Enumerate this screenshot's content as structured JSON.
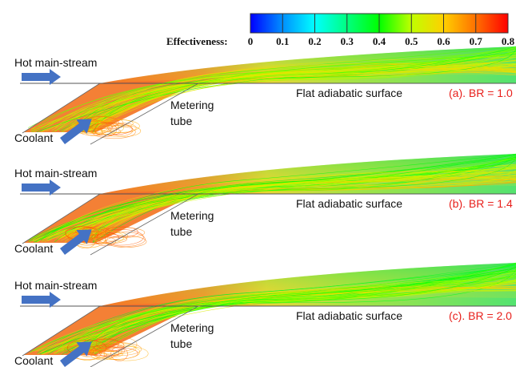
{
  "colorbar": {
    "title": "Effectiveness:",
    "ticks": [
      "0",
      "0.1",
      "0.2",
      "0.3",
      "0.4",
      "0.5",
      "0.6",
      "0.7",
      "0.8"
    ],
    "range": [
      0,
      0.8
    ],
    "colors": [
      "#0000ff",
      "#0090ff",
      "#00ffff",
      "#00ff80",
      "#00ff00",
      "#c0ff00",
      "#ffd000",
      "#ff7000",
      "#ff0000"
    ]
  },
  "labels": {
    "mainstream": "Hot main-stream",
    "surface": "Flat adiabatic surface",
    "tube_line1": "Metering",
    "tube_line2": "tube",
    "coolant": "Coolant"
  },
  "panels": [
    {
      "case": "(a). BR = 1.0",
      "br": 1.0
    },
    {
      "case": "(b). BR = 1.4",
      "br": 1.4
    },
    {
      "case": "(c). BR = 2.0",
      "br": 2.0
    }
  ],
  "arrow_color": "#4472c4",
  "case_color": "#e8201c"
}
